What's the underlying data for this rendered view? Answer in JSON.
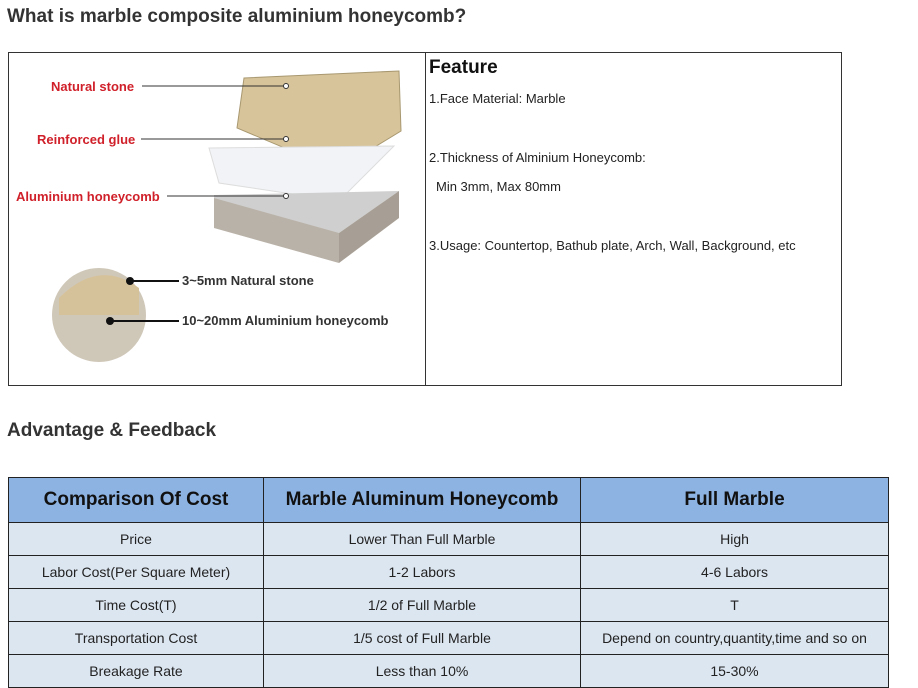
{
  "heading": "What is marble composite aluminium honeycomb?",
  "diagram": {
    "labels": [
      "Natural stone",
      "Reinforced glue",
      "Aluminium honeycomb"
    ],
    "detail_labels": [
      "3~5mm Natural stone",
      "10~20mm Aluminium honeycomb"
    ],
    "colors": {
      "label": "#d0202a",
      "stone": "#d8c49a",
      "honeycomb": "#c9c9c9"
    }
  },
  "feature": {
    "title": "Feature",
    "items": [
      "1.Face Material: Marble",
      "2.Thickness of Alminium Honeycomb:",
      "Min 3mm, Max 80mm",
      "3.Usage: Countertop, Bathub plate, Arch, Wall, Background, etc"
    ]
  },
  "subheading": "Advantage & Feedback",
  "table": {
    "headers": [
      "Comparison Of Cost",
      "Marble Aluminum Honeycomb",
      "Full Marble"
    ],
    "rows": [
      [
        "Price",
        "Lower Than Full Marble",
        "High"
      ],
      [
        "Labor Cost(Per Square Meter)",
        "1-2 Labors",
        "4-6 Labors"
      ],
      [
        "Time Cost(T)",
        "1/2 of Full Marble",
        "T"
      ],
      [
        "Transportation Cost",
        "1/5 cost of Full Marble",
        "Depend on country,quantity,time and so on"
      ],
      [
        "Breakage Rate",
        "Less than 10%",
        "15-30%"
      ]
    ],
    "colors": {
      "header": "#8db3e2",
      "row": "#dce6f1"
    }
  }
}
